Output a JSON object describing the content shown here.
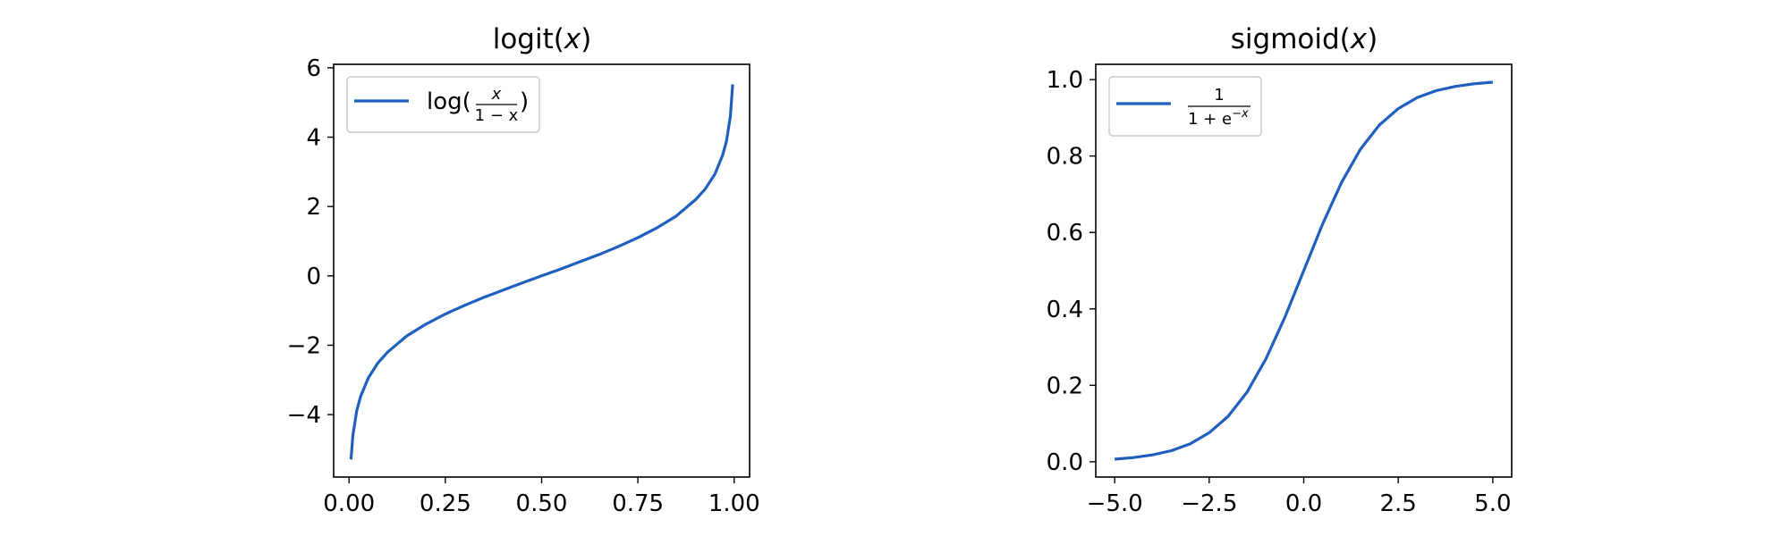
{
  "chart_data": [
    {
      "type": "line",
      "function": "logit",
      "title": "logit(x)",
      "title_parts": [
        "logit(",
        "x",
        ")"
      ],
      "xlabel": "",
      "ylabel": "",
      "xlim": [
        -0.04,
        1.04
      ],
      "ylim": [
        -5.8,
        6.1
      ],
      "xticks": [
        0.0,
        0.25,
        0.5,
        0.75,
        1.0
      ],
      "xtick_labels": [
        "0.00",
        "0.25",
        "0.50",
        "0.75",
        "1.00"
      ],
      "yticks": [
        -4,
        -2,
        0,
        2,
        4,
        6
      ],
      "ytick_labels": [
        "−4",
        "−2",
        "0",
        "2",
        "4",
        "6"
      ],
      "legend_position": "upper left",
      "grid": false,
      "series": [
        {
          "name": "log(x/(1−x))",
          "legend_text": {
            "prefix": "log(",
            "numerator": "x",
            "denominator": "1 − x",
            "suffix": ")"
          },
          "color": "#1f5fbf",
          "x": [
            0.005,
            0.01,
            0.02,
            0.03,
            0.05,
            0.075,
            0.1,
            0.15,
            0.2,
            0.25,
            0.3,
            0.35,
            0.4,
            0.45,
            0.5,
            0.55,
            0.6,
            0.65,
            0.7,
            0.75,
            0.8,
            0.85,
            0.9,
            0.925,
            0.95,
            0.97,
            0.98,
            0.99,
            0.996
          ],
          "y": [
            -5.29,
            -4.6,
            -3.89,
            -3.48,
            -2.94,
            -2.51,
            -2.2,
            -1.73,
            -1.39,
            -1.1,
            -0.85,
            -0.62,
            -0.41,
            -0.2,
            0.0,
            0.2,
            0.41,
            0.62,
            0.85,
            1.1,
            1.39,
            1.73,
            2.2,
            2.51,
            2.94,
            3.48,
            3.89,
            4.6,
            5.52
          ]
        }
      ]
    },
    {
      "type": "line",
      "function": "sigmoid",
      "title": "sigmoid(x)",
      "title_parts": [
        "sigmoid(",
        "x",
        ")"
      ],
      "xlabel": "",
      "ylabel": "",
      "xlim": [
        -5.5,
        5.5
      ],
      "ylim": [
        -0.04,
        1.04
      ],
      "xticks": [
        -5.0,
        -2.5,
        0.0,
        2.5,
        5.0
      ],
      "xtick_labels": [
        "−5.0",
        "−2.5",
        "0.0",
        "2.5",
        "5.0"
      ],
      "yticks": [
        0.0,
        0.2,
        0.4,
        0.6,
        0.8,
        1.0
      ],
      "ytick_labels": [
        "0.0",
        "0.2",
        "0.4",
        "0.6",
        "0.8",
        "1.0"
      ],
      "legend_position": "upper left",
      "grid": false,
      "series": [
        {
          "name": "1/(1+e^(−x))",
          "legend_text": {
            "numerator": "1",
            "denominator_base": "1 + e",
            "denominator_exp": "−x"
          },
          "color": "#1f5fbf",
          "x": [
            -5.0,
            -4.5,
            -4.0,
            -3.5,
            -3.0,
            -2.5,
            -2.0,
            -1.5,
            -1.0,
            -0.5,
            0.0,
            0.5,
            1.0,
            1.5,
            2.0,
            2.5,
            3.0,
            3.5,
            4.0,
            4.5,
            5.0
          ],
          "y": [
            0.0067,
            0.011,
            0.018,
            0.029,
            0.047,
            0.076,
            0.119,
            0.182,
            0.269,
            0.378,
            0.5,
            0.622,
            0.731,
            0.818,
            0.881,
            0.924,
            0.953,
            0.971,
            0.982,
            0.989,
            0.9933
          ]
        }
      ]
    }
  ]
}
